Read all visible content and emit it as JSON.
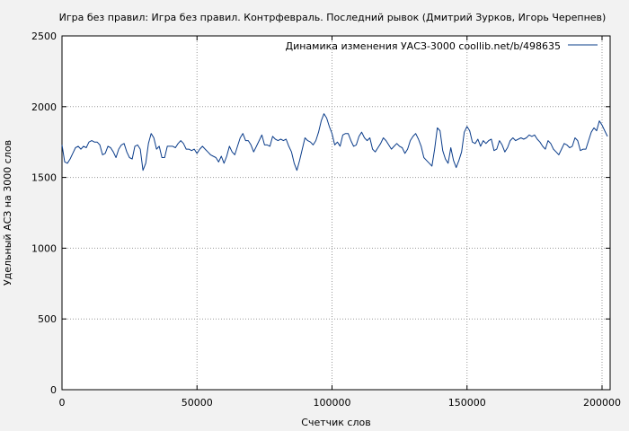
{
  "chart_data": {
    "type": "line",
    "title": "Игра без правил: Игра без правил. Контрфевраль. Последний рывок (Дмитрий Зурков, Игорь Черепнев)",
    "xlabel": "Счетчик слов",
    "ylabel": "Удельный АСЗ на 3000 слов",
    "xlim": [
      0,
      203000
    ],
    "ylim": [
      0,
      2500
    ],
    "x_ticks": [
      {
        "value": 0,
        "label": "0"
      },
      {
        "value": 50000,
        "label": "50000"
      },
      {
        "value": 100000,
        "label": "100000"
      },
      {
        "value": 150000,
        "label": "150000"
      },
      {
        "value": 200000,
        "label": "200000"
      }
    ],
    "y_ticks": [
      {
        "value": 0,
        "label": "0"
      },
      {
        "value": 500,
        "label": "500"
      },
      {
        "value": 1000,
        "label": "1000"
      },
      {
        "value": 1500,
        "label": "1500"
      },
      {
        "value": 2000,
        "label": "2000"
      },
      {
        "value": 2500,
        "label": "2500"
      }
    ],
    "grid": true,
    "legend_position": "top-right",
    "series": [
      {
        "name": "Динамика изменения УАСЗ-3000  coollib.net/b/498635",
        "color": "#0a3c8a",
        "points": [
          [
            0,
            1730
          ],
          [
            1000,
            1610
          ],
          [
            2000,
            1600
          ],
          [
            3000,
            1630
          ],
          [
            4000,
            1670
          ],
          [
            5000,
            1710
          ],
          [
            6000,
            1720
          ],
          [
            7000,
            1700
          ],
          [
            8000,
            1720
          ],
          [
            9000,
            1710
          ],
          [
            10000,
            1750
          ],
          [
            11000,
            1760
          ],
          [
            12000,
            1750
          ],
          [
            13000,
            1750
          ],
          [
            14000,
            1730
          ],
          [
            15000,
            1660
          ],
          [
            16000,
            1670
          ],
          [
            17000,
            1720
          ],
          [
            18000,
            1710
          ],
          [
            19000,
            1680
          ],
          [
            20000,
            1640
          ],
          [
            21000,
            1700
          ],
          [
            22000,
            1730
          ],
          [
            23000,
            1740
          ],
          [
            24000,
            1680
          ],
          [
            25000,
            1640
          ],
          [
            26000,
            1630
          ],
          [
            27000,
            1720
          ],
          [
            28000,
            1730
          ],
          [
            29000,
            1700
          ],
          [
            30000,
            1550
          ],
          [
            31000,
            1600
          ],
          [
            32000,
            1740
          ],
          [
            33000,
            1810
          ],
          [
            34000,
            1780
          ],
          [
            35000,
            1700
          ],
          [
            36000,
            1720
          ],
          [
            37000,
            1640
          ],
          [
            38000,
            1640
          ],
          [
            39000,
            1720
          ],
          [
            40000,
            1720
          ],
          [
            41000,
            1720
          ],
          [
            42000,
            1710
          ],
          [
            43000,
            1740
          ],
          [
            44000,
            1760
          ],
          [
            45000,
            1740
          ],
          [
            46000,
            1700
          ],
          [
            47000,
            1700
          ],
          [
            48000,
            1690
          ],
          [
            49000,
            1700
          ],
          [
            50000,
            1670
          ],
          [
            51000,
            1700
          ],
          [
            52000,
            1720
          ],
          [
            53000,
            1700
          ],
          [
            54000,
            1680
          ],
          [
            55000,
            1660
          ],
          [
            56000,
            1650
          ],
          [
            57000,
            1640
          ],
          [
            58000,
            1610
          ],
          [
            59000,
            1650
          ],
          [
            60000,
            1600
          ],
          [
            61000,
            1650
          ],
          [
            62000,
            1720
          ],
          [
            63000,
            1680
          ],
          [
            64000,
            1660
          ],
          [
            65000,
            1720
          ],
          [
            66000,
            1780
          ],
          [
            67000,
            1810
          ],
          [
            68000,
            1760
          ],
          [
            69000,
            1760
          ],
          [
            70000,
            1730
          ],
          [
            71000,
            1680
          ],
          [
            72000,
            1720
          ],
          [
            73000,
            1760
          ],
          [
            74000,
            1800
          ],
          [
            75000,
            1730
          ],
          [
            76000,
            1730
          ],
          [
            77000,
            1720
          ],
          [
            78000,
            1790
          ],
          [
            79000,
            1770
          ],
          [
            80000,
            1760
          ],
          [
            81000,
            1770
          ],
          [
            82000,
            1760
          ],
          [
            83000,
            1770
          ],
          [
            84000,
            1720
          ],
          [
            85000,
            1680
          ],
          [
            86000,
            1600
          ],
          [
            87000,
            1550
          ],
          [
            88000,
            1620
          ],
          [
            89000,
            1700
          ],
          [
            90000,
            1780
          ],
          [
            91000,
            1760
          ],
          [
            92000,
            1750
          ],
          [
            93000,
            1730
          ],
          [
            94000,
            1760
          ],
          [
            95000,
            1820
          ],
          [
            96000,
            1900
          ],
          [
            97000,
            1950
          ],
          [
            98000,
            1920
          ],
          [
            99000,
            1860
          ],
          [
            100000,
            1810
          ],
          [
            101000,
            1730
          ],
          [
            102000,
            1750
          ],
          [
            103000,
            1720
          ],
          [
            104000,
            1800
          ],
          [
            105000,
            1810
          ],
          [
            106000,
            1810
          ],
          [
            107000,
            1760
          ],
          [
            108000,
            1720
          ],
          [
            109000,
            1730
          ],
          [
            110000,
            1790
          ],
          [
            111000,
            1820
          ],
          [
            112000,
            1780
          ],
          [
            113000,
            1760
          ],
          [
            114000,
            1780
          ],
          [
            115000,
            1700
          ],
          [
            116000,
            1680
          ],
          [
            117000,
            1710
          ],
          [
            118000,
            1740
          ],
          [
            119000,
            1780
          ],
          [
            120000,
            1760
          ],
          [
            121000,
            1730
          ],
          [
            122000,
            1700
          ],
          [
            123000,
            1720
          ],
          [
            124000,
            1740
          ],
          [
            125000,
            1720
          ],
          [
            126000,
            1710
          ],
          [
            127000,
            1670
          ],
          [
            128000,
            1700
          ],
          [
            129000,
            1760
          ],
          [
            130000,
            1790
          ],
          [
            131000,
            1810
          ],
          [
            132000,
            1770
          ],
          [
            133000,
            1720
          ],
          [
            134000,
            1640
          ],
          [
            135000,
            1620
          ],
          [
            136000,
            1600
          ],
          [
            137000,
            1580
          ],
          [
            138000,
            1700
          ],
          [
            139000,
            1850
          ],
          [
            140000,
            1830
          ],
          [
            141000,
            1690
          ],
          [
            142000,
            1630
          ],
          [
            143000,
            1600
          ],
          [
            144000,
            1710
          ],
          [
            145000,
            1620
          ],
          [
            146000,
            1570
          ],
          [
            147000,
            1620
          ],
          [
            148000,
            1680
          ],
          [
            149000,
            1820
          ],
          [
            150000,
            1860
          ],
          [
            151000,
            1830
          ],
          [
            152000,
            1750
          ],
          [
            153000,
            1740
          ],
          [
            154000,
            1770
          ],
          [
            155000,
            1720
          ],
          [
            156000,
            1760
          ],
          [
            157000,
            1740
          ],
          [
            158000,
            1760
          ],
          [
            159000,
            1770
          ],
          [
            160000,
            1690
          ],
          [
            161000,
            1700
          ],
          [
            162000,
            1760
          ],
          [
            163000,
            1730
          ],
          [
            164000,
            1680
          ],
          [
            165000,
            1710
          ],
          [
            166000,
            1760
          ],
          [
            167000,
            1780
          ],
          [
            168000,
            1760
          ],
          [
            169000,
            1770
          ],
          [
            170000,
            1780
          ],
          [
            171000,
            1770
          ],
          [
            172000,
            1780
          ],
          [
            173000,
            1800
          ],
          [
            174000,
            1790
          ],
          [
            175000,
            1800
          ],
          [
            176000,
            1770
          ],
          [
            177000,
            1750
          ],
          [
            178000,
            1720
          ],
          [
            179000,
            1700
          ],
          [
            180000,
            1760
          ],
          [
            181000,
            1740
          ],
          [
            182000,
            1700
          ],
          [
            183000,
            1680
          ],
          [
            184000,
            1660
          ],
          [
            185000,
            1700
          ],
          [
            186000,
            1740
          ],
          [
            187000,
            1730
          ],
          [
            188000,
            1710
          ],
          [
            189000,
            1720
          ],
          [
            190000,
            1780
          ],
          [
            191000,
            1760
          ],
          [
            192000,
            1690
          ],
          [
            193000,
            1700
          ],
          [
            194000,
            1700
          ],
          [
            195000,
            1760
          ],
          [
            196000,
            1820
          ],
          [
            197000,
            1850
          ],
          [
            198000,
            1830
          ],
          [
            199000,
            1900
          ],
          [
            200000,
            1870
          ],
          [
            201000,
            1830
          ],
          [
            202000,
            1790
          ]
        ]
      }
    ]
  }
}
